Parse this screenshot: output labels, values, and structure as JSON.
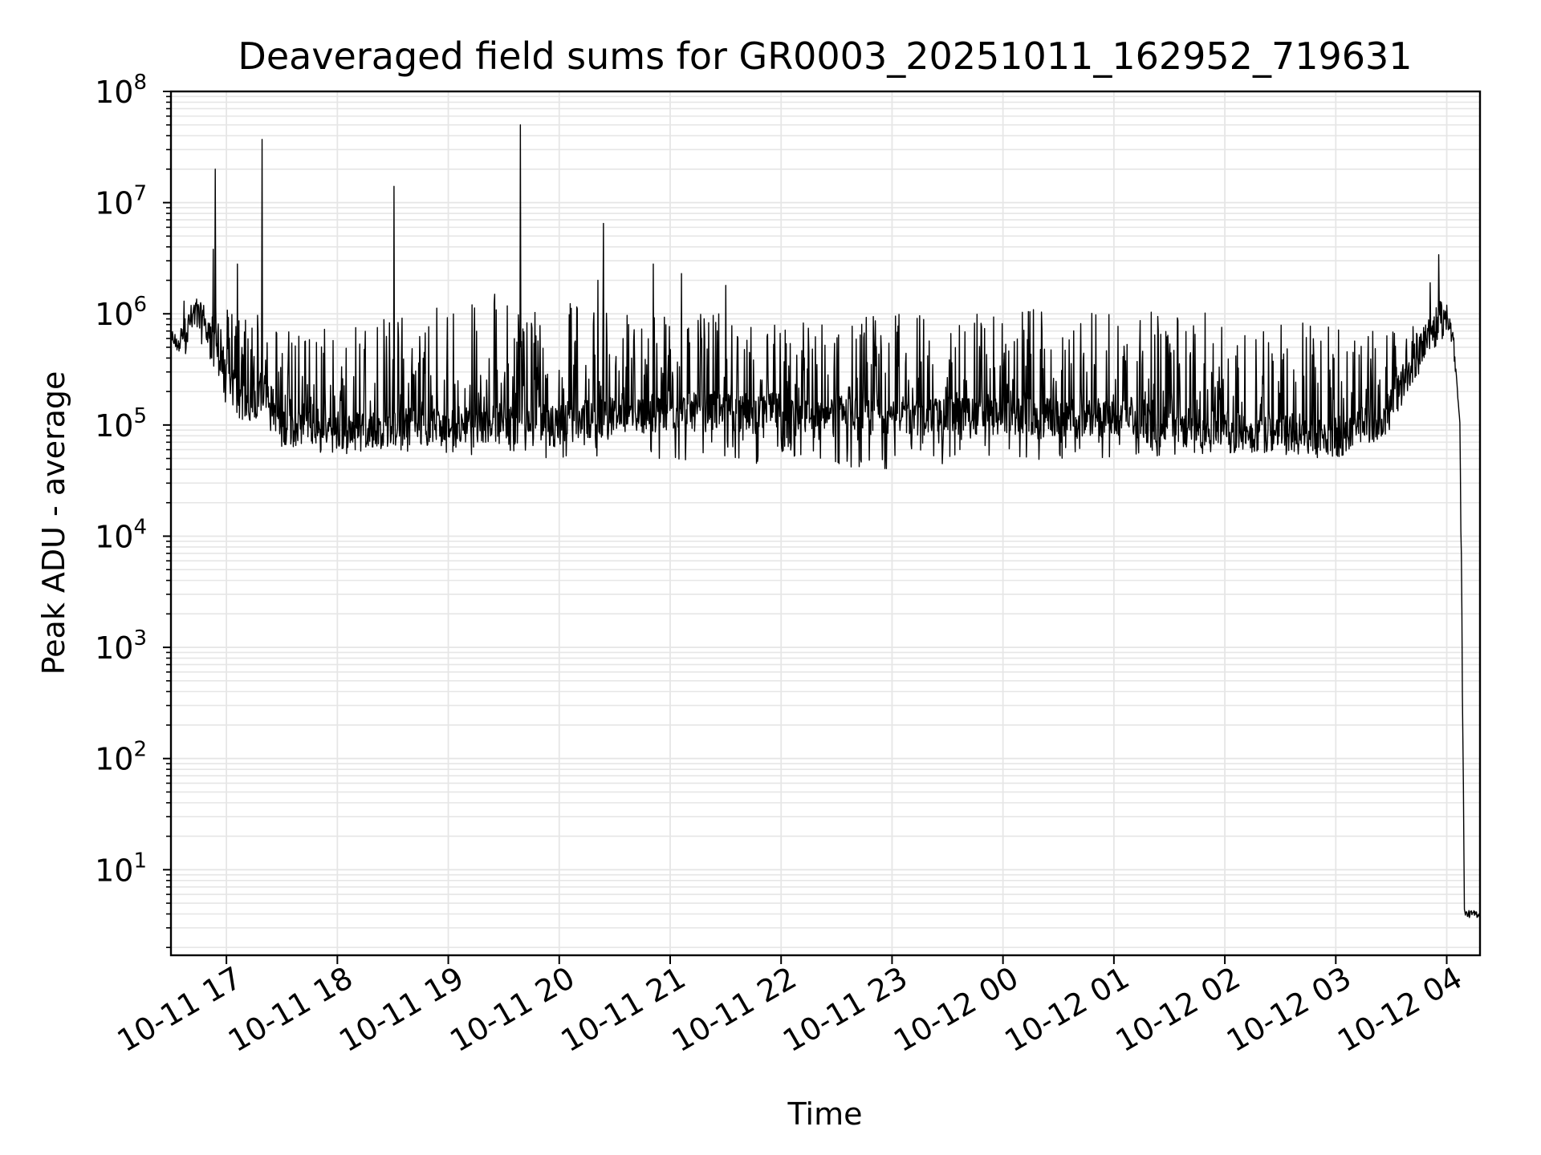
{
  "chart_data": {
    "type": "line",
    "title": "Deaveraged field sums for GR0003_20251011_162952_719631",
    "xlabel": "Time",
    "ylabel": "Peak ADU - average",
    "yscale": "log",
    "ylim": [
      1.7,
      100000000
    ],
    "xlim_hours": [
      16.5,
      28.3
    ],
    "grid": true,
    "line_color": "#000000",
    "grid_color": "#e6e6e6",
    "x_ticks": [
      {
        "hour": 17,
        "label": "10-11 17"
      },
      {
        "hour": 18,
        "label": "10-11 18"
      },
      {
        "hour": 19,
        "label": "10-11 19"
      },
      {
        "hour": 20,
        "label": "10-11 20"
      },
      {
        "hour": 21,
        "label": "10-11 21"
      },
      {
        "hour": 22,
        "label": "10-11 22"
      },
      {
        "hour": 23,
        "label": "10-11 23"
      },
      {
        "hour": 24,
        "label": "10-12 00"
      },
      {
        "hour": 25,
        "label": "10-12 01"
      },
      {
        "hour": 26,
        "label": "10-12 02"
      },
      {
        "hour": 27,
        "label": "10-12 03"
      },
      {
        "hour": 28,
        "label": "10-12 04"
      }
    ],
    "y_ticks": [
      {
        "exp": 1,
        "base": "10",
        "sup": "1"
      },
      {
        "exp": 2,
        "base": "10",
        "sup": "2"
      },
      {
        "exp": 3,
        "base": "10",
        "sup": "3"
      },
      {
        "exp": 4,
        "base": "10",
        "sup": "4"
      },
      {
        "exp": 5,
        "base": "10",
        "sup": "5"
      },
      {
        "exp": 6,
        "base": "10",
        "sup": "6"
      },
      {
        "exp": 7,
        "base": "10",
        "sup": "7"
      },
      {
        "exp": 8,
        "base": "10",
        "sup": "8"
      }
    ],
    "series": [
      {
        "name": "Peak ADU - average",
        "envelope": [
          {
            "t": 16.5,
            "base": 500000,
            "low": 450000,
            "high": 600000
          },
          {
            "t": 16.6,
            "base": 550000,
            "low": 450000,
            "high": 900000
          },
          {
            "t": 16.72,
            "base": 1000000,
            "low": 700000,
            "high": 1300000
          },
          {
            "t": 16.85,
            "base": 600000,
            "low": 350000,
            "high": 1200000
          },
          {
            "t": 17.0,
            "base": 250000,
            "low": 150000,
            "high": 1100000
          },
          {
            "t": 17.15,
            "base": 150000,
            "low": 70000,
            "high": 1000000
          },
          {
            "t": 17.35,
            "base": 200000,
            "low": 100000,
            "high": 1000000
          },
          {
            "t": 17.5,
            "base": 100000,
            "low": 60000,
            "high": 800000
          },
          {
            "t": 18.0,
            "base": 90000,
            "low": 55000,
            "high": 800000
          },
          {
            "t": 19.0,
            "base": 100000,
            "low": 55000,
            "high": 1300000
          },
          {
            "t": 20.0,
            "base": 110000,
            "low": 50000,
            "high": 1300000
          },
          {
            "t": 21.0,
            "base": 130000,
            "low": 45000,
            "high": 1000000
          },
          {
            "t": 22.0,
            "base": 130000,
            "low": 45000,
            "high": 1000000
          },
          {
            "t": 23.0,
            "base": 120000,
            "low": 40000,
            "high": 1000000
          },
          {
            "t": 24.0,
            "base": 120000,
            "low": 45000,
            "high": 1100000
          },
          {
            "t": 25.0,
            "base": 110000,
            "low": 50000,
            "high": 1100000
          },
          {
            "t": 26.0,
            "base": 90000,
            "low": 55000,
            "high": 1000000
          },
          {
            "t": 27.0,
            "base": 75000,
            "low": 50000,
            "high": 900000
          },
          {
            "t": 27.45,
            "base": 120000,
            "low": 70000,
            "high": 700000
          },
          {
            "t": 27.7,
            "base": 350000,
            "low": 250000,
            "high": 800000
          },
          {
            "t": 27.95,
            "base": 900000,
            "low": 700000,
            "high": 1100000
          },
          {
            "t": 28.05,
            "base": 800000,
            "low": 700000,
            "high": 900000
          },
          {
            "t": 28.12,
            "base": 100000,
            "low": 100000,
            "high": 100000
          },
          {
            "t": 28.16,
            "base": 4,
            "low": 4,
            "high": 4
          },
          {
            "t": 28.3,
            "base": 4,
            "low": 4,
            "high": 4
          }
        ],
        "peaks": [
          {
            "t": 16.62,
            "v": 1300000
          },
          {
            "t": 16.88,
            "v": 3800000
          },
          {
            "t": 16.9,
            "v": 20000000
          },
          {
            "t": 17.1,
            "v": 2800000
          },
          {
            "t": 17.32,
            "v": 37000000
          },
          {
            "t": 18.51,
            "v": 14000000
          },
          {
            "t": 19.42,
            "v": 1500000
          },
          {
            "t": 19.65,
            "v": 50000000
          },
          {
            "t": 20.35,
            "v": 2000000
          },
          {
            "t": 20.4,
            "v": 6500000
          },
          {
            "t": 20.85,
            "v": 2800000
          },
          {
            "t": 21.1,
            "v": 2300000
          },
          {
            "t": 21.5,
            "v": 1800000
          },
          {
            "t": 27.85,
            "v": 1900000
          },
          {
            "t": 27.93,
            "v": 3400000
          }
        ]
      }
    ]
  }
}
